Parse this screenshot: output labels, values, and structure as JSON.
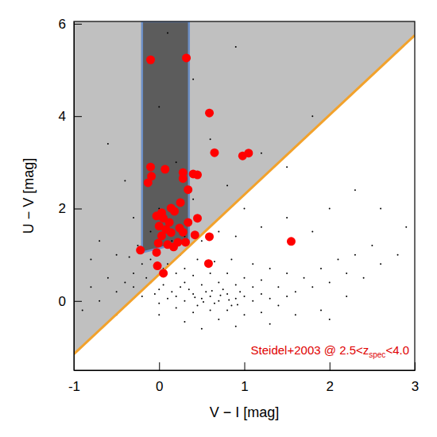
{
  "chart_data": {
    "type": "scatter",
    "x_label": "V − I [mag]",
    "y_label": "U − V [mag]",
    "xlim": [
      -1,
      3
    ],
    "ylim": [
      -1.5,
      6.05
    ],
    "xticks": [
      -1,
      0,
      1,
      2,
      3
    ],
    "yticks": [
      0,
      2,
      4,
      6
    ],
    "grid": false,
    "annotation": [
      "Steidel+2003 @ 2.5<z",
      "spec",
      "<4.0"
    ],
    "annotation_color": "#e00000",
    "selection_line": {
      "x": [
        -1,
        3
      ],
      "y": [
        -1.15,
        5.75
      ],
      "color": "#f2a22c"
    },
    "shaded_region_color": "#c0c0c0",
    "selection_box": {
      "x": [
        -0.2,
        -0.2,
        0.35,
        0.35
      ],
      "y": [
        6.05,
        1.05,
        1.3,
        6.05
      ],
      "color": "#5c5c5c",
      "edge_color": "#6d8fc6"
    },
    "series": [
      {
        "color": "#000000",
        "marker": "point",
        "x": [
          0.2,
          0.3,
          0.4,
          0.5,
          0.6,
          0.7,
          0.8,
          0.9,
          1.0,
          0.35,
          0.45,
          0.55,
          0.65,
          0.75,
          0.85,
          0.95,
          0.25,
          0.15,
          0.1,
          0.05,
          0.0,
          -0.1,
          -0.05,
          0.3,
          0.5,
          0.7,
          0.6,
          0.8,
          1.1,
          1.2,
          1.1,
          0.4,
          0.2,
          0.0,
          1.3,
          0.9,
          0.62,
          0.72,
          0.52,
          0.42,
          0.82,
          0.92,
          -0.3,
          -0.2,
          -0.1,
          0.0,
          0.1,
          0.2,
          -0.15,
          0.05,
          0.3,
          0.4,
          0.6,
          0.8,
          1.0,
          1.2,
          1.4,
          1.5,
          1.6,
          1.4,
          1.2,
          1.0,
          0.7,
          0.3,
          0.0,
          -0.2,
          -0.3,
          -0.4,
          -0.5,
          -0.6,
          -0.35,
          -0.25,
          0.15,
          0.25,
          0.45,
          0.65,
          0.85,
          1.1,
          1.3,
          1.5,
          1.7,
          1.8,
          1.9,
          2.0,
          2.1,
          2.2,
          2.3,
          2.4,
          2.5,
          2.6,
          2.8,
          1.6,
          1.9,
          2.2,
          -0.7,
          -0.8,
          -0.5,
          -0.9,
          0.5,
          0.9,
          1.3,
          2.0,
          -0.1,
          0.1,
          0.3,
          0.5,
          0.7,
          0.9,
          1.2,
          1.5,
          1.8,
          2.0,
          2.3,
          0.0,
          0.4,
          0.8,
          1.0,
          -0.3,
          -0.5,
          -0.7,
          0.2,
          0.6,
          1.2,
          0.0,
          0.4,
          -0.4,
          1.5,
          0.9,
          0.1,
          -0.6,
          1.8,
          2.6,
          2.9,
          -0.8
        ],
        "values": [
          0.1,
          0.0,
          0.15,
          0.05,
          0.1,
          0.0,
          0.15,
          0.05,
          0.1,
          0.25,
          -0.1,
          0.2,
          -0.05,
          0.25,
          -0.1,
          0.2,
          0.3,
          0.2,
          0.05,
          0.35,
          0.25,
          0.4,
          0.15,
          0.4,
          0.35,
          0.4,
          -0.2,
          -0.2,
          0.0,
          0.15,
          0.3,
          -0.25,
          -0.15,
          -0.05,
          0.05,
          0.35,
          0.22,
          0.12,
          -0.02,
          0.08,
          0.02,
          -0.08,
          0.6,
          0.8,
          0.9,
          1.1,
          0.8,
          0.6,
          0.5,
          0.7,
          0.7,
          0.55,
          0.6,
          0.6,
          0.5,
          0.45,
          0.3,
          0.1,
          0.2,
          -0.1,
          -0.25,
          -0.3,
          -0.4,
          -0.45,
          -0.3,
          0.1,
          0.3,
          0.4,
          0.2,
          0.5,
          0.95,
          1.2,
          1.3,
          1.0,
          0.9,
          0.85,
          0.9,
          0.8,
          0.7,
          0.6,
          0.5,
          0.3,
          0.7,
          0.4,
          0.9,
          0.6,
          1.0,
          0.5,
          1.2,
          0.8,
          1.0,
          -0.3,
          -0.2,
          0.1,
          0.0,
          0.3,
          -0.3,
          -0.2,
          -0.6,
          -0.55,
          -0.5,
          -0.4,
          1.5,
          1.6,
          1.4,
          1.3,
          1.5,
          1.4,
          1.6,
          1.8,
          1.5,
          2.0,
          2.4,
          2.0,
          2.2,
          2.5,
          2.0,
          1.8,
          1.0,
          1.3,
          3.0,
          3.5,
          3.2,
          4.2,
          4.8,
          2.6,
          2.9,
          5.5,
          5.8,
          3.4,
          4.0,
          2.0,
          1.6,
          0.9
        ]
      },
      {
        "color": "#ff0000",
        "marker": "circle",
        "x": [
          -0.1,
          0.32,
          0.59,
          0.65,
          1.05,
          0.98,
          -0.1,
          -0.09,
          -0.13,
          0.07,
          0.28,
          0.4,
          0.45,
          0.28,
          0.34,
          0.25,
          0.14,
          0.18,
          0.03,
          -0.03,
          0.05,
          0.0,
          0.12,
          0.08,
          0.24,
          0.14,
          0.28,
          0.34,
          0.45,
          0.42,
          0.03,
          -0.01,
          0.1,
          0.22,
          0.31,
          0.17,
          -0.22,
          -0.03,
          -0.02,
          0.05,
          0.59,
          0.58,
          1.55
        ],
        "values": [
          5.22,
          5.26,
          4.07,
          3.21,
          3.2,
          3.14,
          2.9,
          2.7,
          2.56,
          2.85,
          2.78,
          2.75,
          2.73,
          2.65,
          2.41,
          2.13,
          2.01,
          1.94,
          1.91,
          1.84,
          1.79,
          1.62,
          1.7,
          1.55,
          1.58,
          1.48,
          1.49,
          1.7,
          1.79,
          1.43,
          1.41,
          1.25,
          1.22,
          1.27,
          1.27,
          1.17,
          1.1,
          1.05,
          0.76,
          0.6,
          1.39,
          0.81,
          1.29
        ]
      }
    ]
  }
}
